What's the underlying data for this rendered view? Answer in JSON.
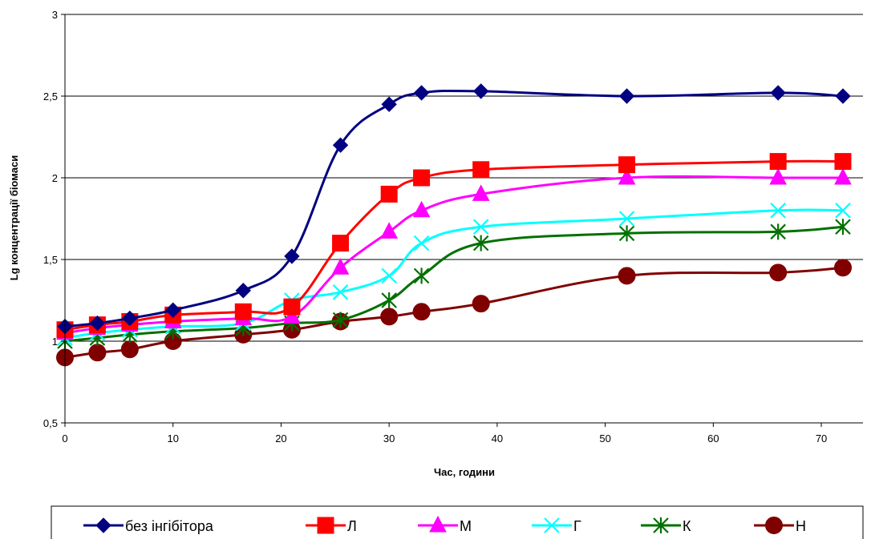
{
  "chart_data": {
    "type": "line",
    "title": "",
    "xlabel": "Час, години",
    "ylabel": "Lg концентрації біомаси",
    "xlim": [
      0,
      72
    ],
    "ylim": [
      0.5,
      3
    ],
    "x_ticks": [
      0,
      10,
      20,
      30,
      40,
      50,
      60,
      70
    ],
    "x_tick_labels": [
      "0",
      "10",
      "20",
      "30",
      "40",
      "50",
      "60",
      "70"
    ],
    "y_ticks": [
      0.5,
      1,
      1.5,
      2,
      2.5,
      3
    ],
    "y_tick_labels": [
      "0,5",
      "1",
      "1,5",
      "2",
      "2,5",
      "3"
    ],
    "grid": "horizontal",
    "legend_position": "bottom",
    "x": [
      0,
      3,
      6,
      10,
      16.5,
      21,
      25.5,
      30,
      33,
      38.5,
      52,
      66,
      72
    ],
    "series": [
      {
        "name": "без інгібітора",
        "color": "#000080",
        "marker": "diamond",
        "values": [
          1.09,
          1.11,
          1.14,
          1.19,
          1.31,
          1.52,
          2.2,
          2.45,
          2.52,
          2.53,
          2.5,
          2.52,
          2.5
        ]
      },
      {
        "name": "Л",
        "color": "#ff0000",
        "marker": "square",
        "values": [
          1.07,
          1.1,
          1.12,
          1.16,
          1.18,
          1.21,
          1.6,
          1.9,
          2.0,
          2.05,
          2.08,
          2.1,
          2.1
        ]
      },
      {
        "name": "М",
        "color": "#ff00ff",
        "marker": "triangle",
        "values": [
          1.05,
          1.08,
          1.1,
          1.12,
          1.14,
          1.15,
          1.45,
          1.67,
          1.8,
          1.9,
          2.0,
          2.0,
          2.0
        ]
      },
      {
        "name": "Г",
        "color": "#00ffff",
        "marker": "x",
        "values": [
          1.02,
          1.05,
          1.07,
          1.09,
          1.11,
          1.25,
          1.3,
          1.4,
          1.6,
          1.7,
          1.75,
          1.8,
          1.8
        ]
      },
      {
        "name": "К",
        "color": "#007000",
        "marker": "asterisk",
        "values": [
          1.0,
          1.02,
          1.04,
          1.06,
          1.08,
          1.11,
          1.13,
          1.25,
          1.4,
          1.6,
          1.66,
          1.67,
          1.7
        ]
      },
      {
        "name": "Н",
        "color": "#800000",
        "marker": "circle",
        "values": [
          0.9,
          0.93,
          0.95,
          1.0,
          1.04,
          1.07,
          1.12,
          1.15,
          1.18,
          1.23,
          1.4,
          1.42,
          1.45
        ]
      }
    ]
  }
}
